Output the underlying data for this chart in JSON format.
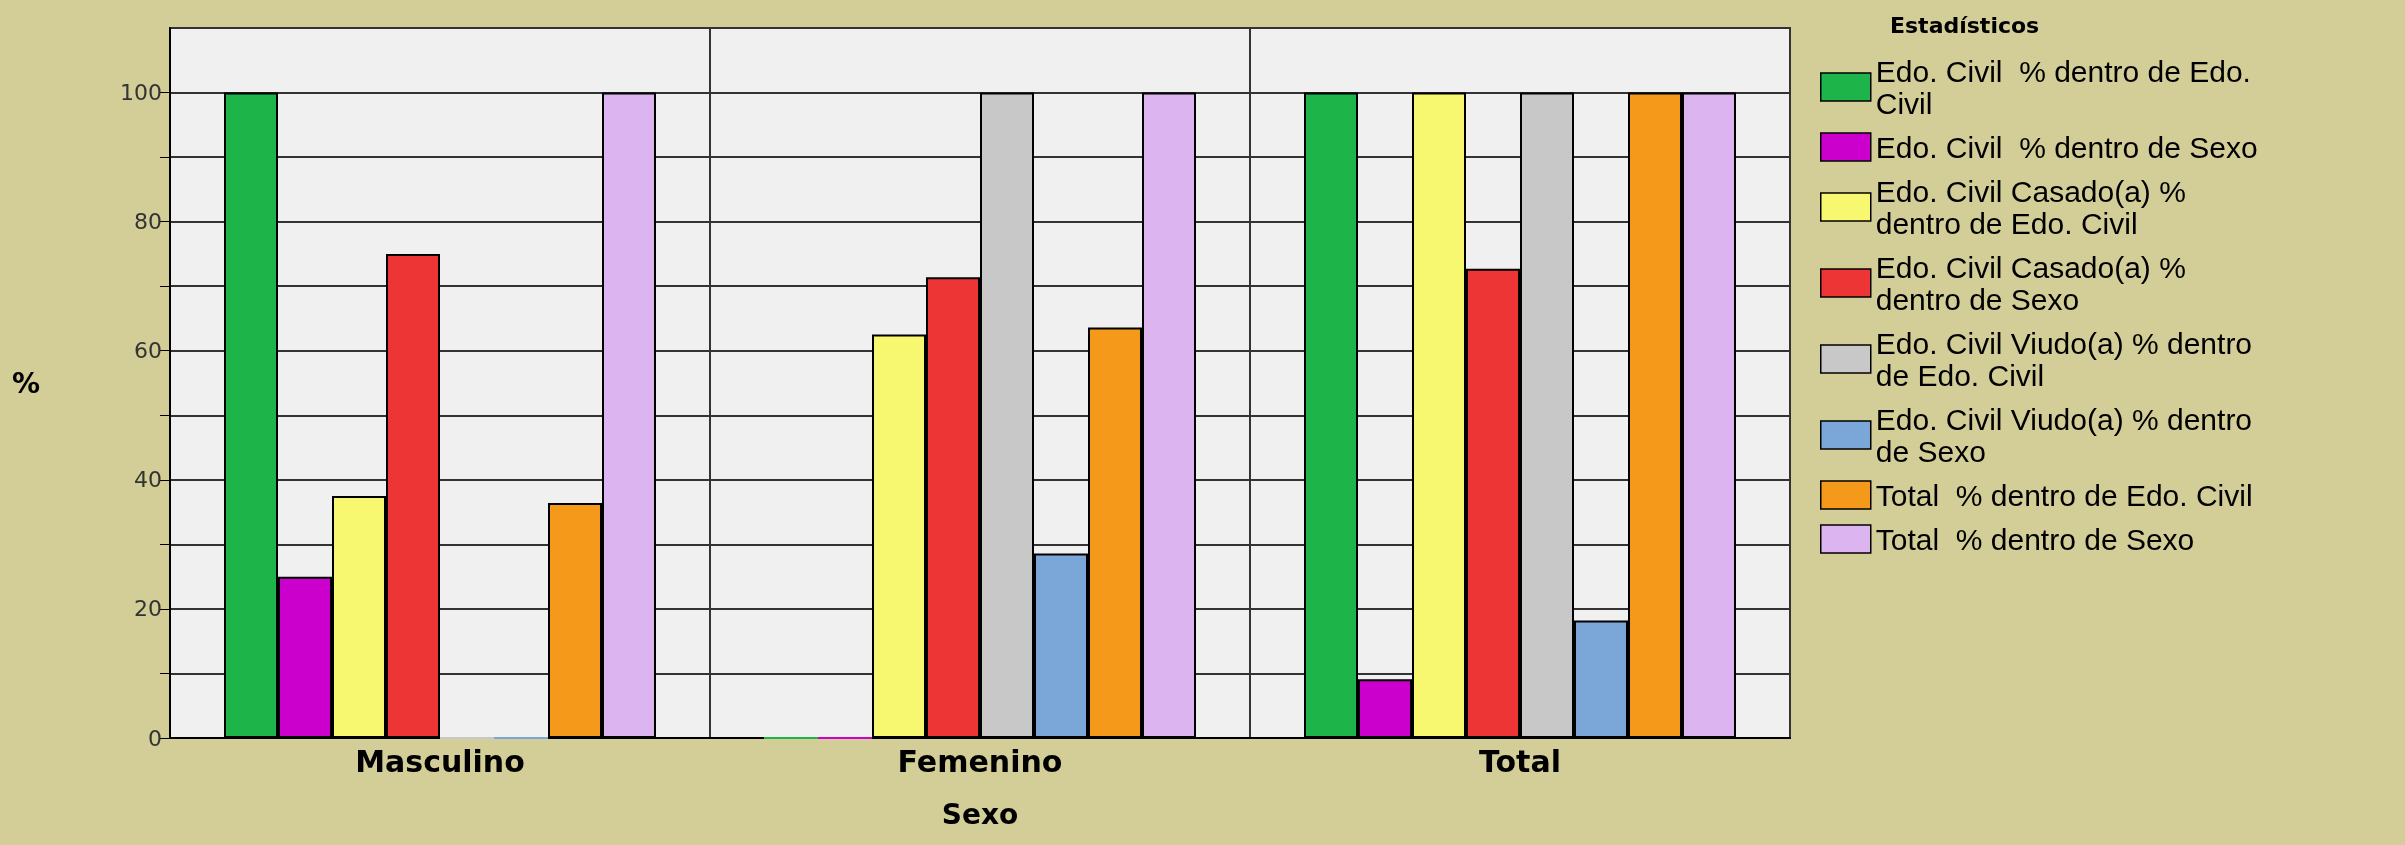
{
  "chart_data": {
    "type": "bar",
    "xlabel": "Sexo",
    "ylabel": "%",
    "legend_title": "Estadísticos",
    "categories": [
      "Masculino",
      "Femenino",
      "Total"
    ],
    "series": [
      {
        "name": "Edo. Civil  % dentro de Edo. Civil",
        "color": "#1db44a",
        "values": [
          100,
          0,
          100
        ]
      },
      {
        "name": "Edo. Civil  % dentro de Sexo",
        "color": "#cc00cc",
        "values": [
          25,
          0,
          9.1
        ]
      },
      {
        "name": "Edo. Civil Casado(a) % dentro de Edo. Civil",
        "color": "#f8f870",
        "values": [
          37.5,
          62.5,
          100
        ]
      },
      {
        "name": "Edo. Civil Casado(a) % dentro de Sexo",
        "color": "#ee3535",
        "values": [
          75,
          71.4,
          72.7
        ]
      },
      {
        "name": "Edo. Civil Viudo(a) % dentro de Edo. Civil",
        "color": "#c8c8c8",
        "values": [
          0,
          100,
          100
        ]
      },
      {
        "name": "Edo. Civil Viudo(a) % dentro de Sexo",
        "color": "#7ba7d8",
        "values": [
          0,
          28.6,
          18.2
        ]
      },
      {
        "name": "Total  % dentro de Edo. Civil",
        "color": "#f4991a",
        "values": [
          36.4,
          63.6,
          100
        ]
      },
      {
        "name": "Total  % dentro de Sexo",
        "color": "#dcb4f0",
        "values": [
          100,
          100,
          100
        ]
      }
    ],
    "ylim": [
      0,
      110
    ],
    "yticks": [
      0,
      {
        "value": 10,
        "label": null
      },
      20,
      {
        "value": 30,
        "label": null
      },
      40,
      {
        "value": 50,
        "label": null
      },
      60,
      {
        "value": 70,
        "label": null
      },
      80,
      {
        "value": 90,
        "label": null
      },
      100
    ],
    "grid": true,
    "legend": "right"
  }
}
